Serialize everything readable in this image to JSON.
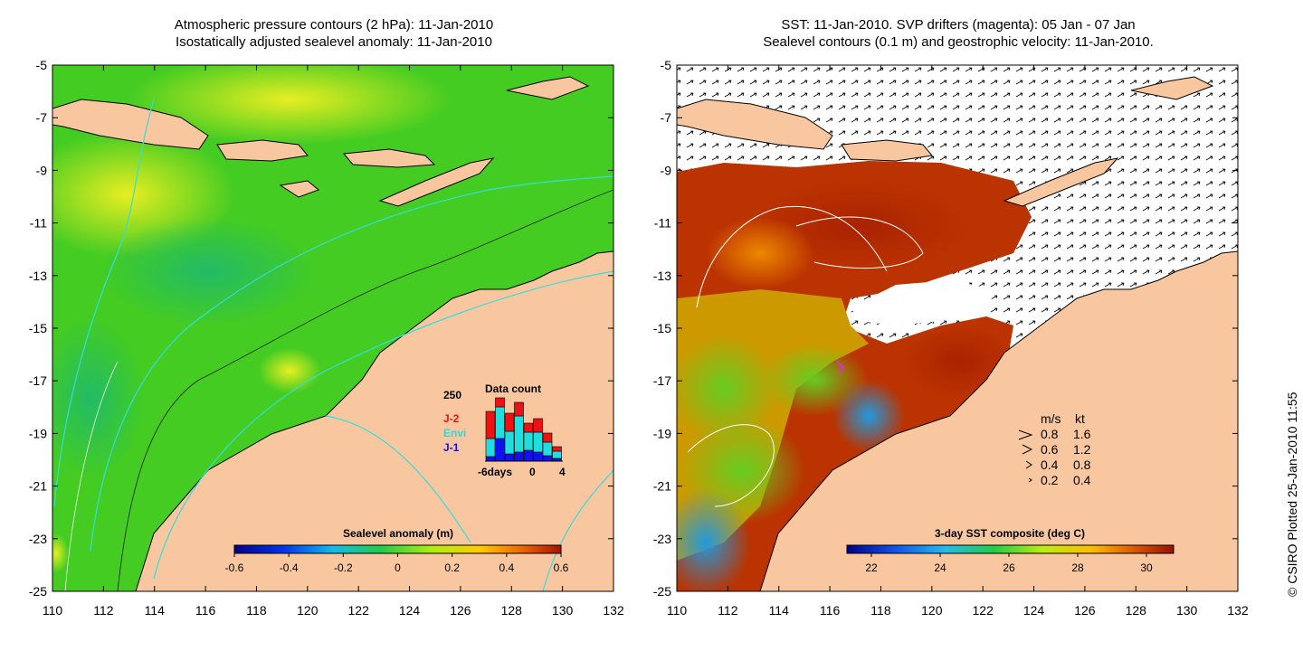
{
  "left_panel": {
    "title_line1": "Atmospheric pressure contours (2 hPa): 11-Jan-2010",
    "title_line2": "Isostatically adjusted sealevel anomaly: 11-Jan-2010",
    "colorbar_label": "Sealevel anomaly (m)",
    "colorbar_ticks": [
      "-0.6",
      "-0.4",
      "-0.2",
      "0",
      "0.2",
      "0.4",
      "0.6"
    ],
    "inset": {
      "title": "Data count",
      "y_max_label": "250",
      "x_labels": [
        "-6days",
        "0",
        "4"
      ],
      "missions": [
        {
          "name": "J-2",
          "color": "#ee1111"
        },
        {
          "name": "Envi",
          "color": "#22dddd"
        },
        {
          "name": "J-1",
          "color": "#1111ee"
        }
      ]
    }
  },
  "right_panel": {
    "title_line1": "SST: 11-Jan-2010. SVP drifters (magenta): 05 Jan - 07 Jan",
    "title_line2": "Sealevel contours (0.1 m) and geostrophic velocity: 11-Jan-2010.",
    "colorbar_label": "3-day SST composite (deg C)",
    "colorbar_ticks": [
      "22",
      "24",
      "26",
      "28",
      "30"
    ],
    "velocity_legend": {
      "header_ms": "m/s",
      "header_kt": "kt",
      "rows": [
        {
          "ms": "0.8",
          "kt": "1.6"
        },
        {
          "ms": "0.6",
          "kt": "1.2"
        },
        {
          "ms": "0.4",
          "kt": "0.8"
        },
        {
          "ms": "0.2",
          "kt": "0.4"
        }
      ]
    }
  },
  "axes": {
    "y_ticks": [
      "-5",
      "-7",
      "-9",
      "-11",
      "-13",
      "-15",
      "-17",
      "-19",
      "-21",
      "-23",
      "-25"
    ],
    "x_ticks": [
      "110",
      "112",
      "114",
      "116",
      "118",
      "120",
      "122",
      "124",
      "126",
      "128",
      "130",
      "132"
    ]
  },
  "credit": "© CSIRO Plotted 25-Jan-2010 11:55",
  "colors": {
    "land": "#f9c79f",
    "ocean_green": "#44cc22",
    "ocean_yellow": "#ccee22",
    "sst_hot": "#bb3300",
    "contour_cyan": "#33dddd"
  }
}
